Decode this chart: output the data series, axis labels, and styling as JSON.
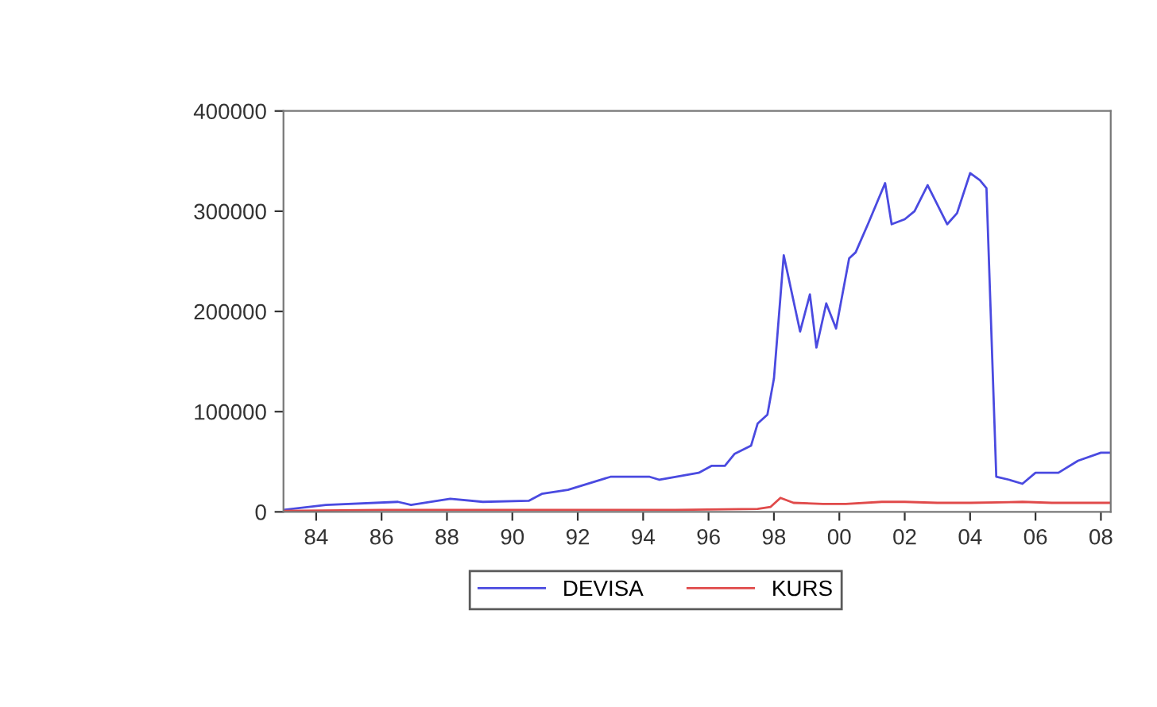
{
  "chart_data": {
    "type": "line",
    "xlim": [
      1983,
      2008.3
    ],
    "ylim": [
      0,
      400000
    ],
    "xticks": [
      {
        "value": 1984,
        "label": "84"
      },
      {
        "value": 1986,
        "label": "86"
      },
      {
        "value": 1988,
        "label": "88"
      },
      {
        "value": 1990,
        "label": "90"
      },
      {
        "value": 1992,
        "label": "92"
      },
      {
        "value": 1994,
        "label": "94"
      },
      {
        "value": 1996,
        "label": "96"
      },
      {
        "value": 1998,
        "label": "98"
      },
      {
        "value": 2000,
        "label": "00"
      },
      {
        "value": 2002,
        "label": "02"
      },
      {
        "value": 2004,
        "label": "04"
      },
      {
        "value": 2006,
        "label": "06"
      },
      {
        "value": 2008,
        "label": "08"
      }
    ],
    "yticks": [
      0,
      100000,
      200000,
      300000,
      400000
    ],
    "grid": false,
    "legend": "bottom",
    "marker": "none",
    "line_style": "solid",
    "series": [
      {
        "name": "DEVISA",
        "color": "#4a4ae0",
        "x": [
          1983.0,
          1984.3,
          1986.5,
          1986.9,
          1988.1,
          1989.1,
          1990.5,
          1990.9,
          1991.7,
          1993.0,
          1994.2,
          1994.5,
          1995.7,
          1996.1,
          1996.5,
          1996.8,
          1997.3,
          1997.5,
          1997.8,
          1998.0,
          1998.3,
          1998.8,
          1999.1,
          1999.3,
          1999.6,
          1999.9,
          2000.3,
          2000.5,
          2000.9,
          2001.4,
          2001.6,
          2002.0,
          2002.3,
          2002.7,
          2003.3,
          2003.6,
          2004.0,
          2004.3,
          2004.5,
          2004.8,
          2005.2,
          2005.6,
          2006.0,
          2006.7,
          2007.3,
          2008.0,
          2008.3
        ],
        "values": [
          2000,
          7000,
          10000,
          7000,
          13000,
          10000,
          11000,
          18000,
          22000,
          35000,
          35000,
          32000,
          39000,
          46000,
          46000,
          58000,
          66000,
          88000,
          97000,
          133000,
          256000,
          180000,
          217000,
          164000,
          208000,
          183000,
          253000,
          259000,
          289000,
          328000,
          287000,
          292000,
          300000,
          326000,
          287000,
          298000,
          338000,
          331000,
          323000,
          35000,
          32000,
          28000,
          39000,
          39000,
          51000,
          59000,
          59000
        ]
      },
      {
        "name": "KURS",
        "color": "#e04a4a",
        "x": [
          1983.0,
          1986.0,
          1990.0,
          1995.0,
          1997.5,
          1997.9,
          1998.2,
          1998.6,
          1999.5,
          2000.2,
          2001.3,
          2002.0,
          2003.0,
          2004.0,
          2005.6,
          2006.5,
          2008.3
        ],
        "values": [
          1000,
          2000,
          2000,
          2000,
          3000,
          5000,
          14000,
          9000,
          8000,
          8000,
          10000,
          10000,
          9000,
          9000,
          10000,
          9000,
          9000
        ]
      }
    ]
  }
}
